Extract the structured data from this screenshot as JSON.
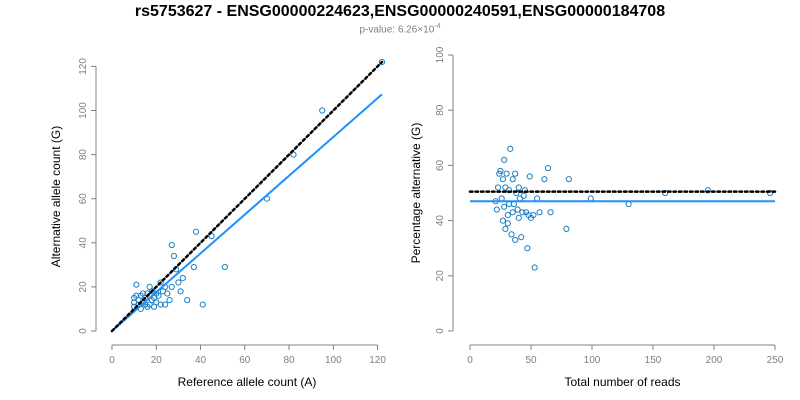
{
  "title": "rs5753627 - ENSG00000224623,ENSG00000240591,ENSG00000184708",
  "pvalue": {
    "prefix": "p-value: 6.26×10",
    "exponent": "-4"
  },
  "colors": {
    "points": "#1a80c4",
    "fit_line": "#1e90ff",
    "reference_line": "#000000",
    "axes": "#808080"
  },
  "chart_data": [
    {
      "type": "scatter",
      "xlabel": "Reference allele count (A)",
      "ylabel": "Alternative allele count (G)",
      "xlim": [
        0,
        122
      ],
      "ylim": [
        0,
        122
      ],
      "xticks": [
        0,
        20,
        40,
        60,
        80,
        100,
        120
      ],
      "yticks": [
        0,
        20,
        40,
        60,
        80,
        100,
        120
      ],
      "grid": false,
      "reference_line": {
        "style": "dotted",
        "slope": 1,
        "intercept": 0,
        "x": [
          0,
          122
        ]
      },
      "fit_line": {
        "style": "solid",
        "slope": 0.88,
        "intercept": 0,
        "x": [
          0,
          122
        ]
      },
      "points": [
        [
          10,
          11
        ],
        [
          10,
          13
        ],
        [
          10,
          15
        ],
        [
          11,
          16
        ],
        [
          11,
          21
        ],
        [
          12,
          12
        ],
        [
          12,
          14
        ],
        [
          13,
          10
        ],
        [
          13,
          16
        ],
        [
          14,
          13
        ],
        [
          14,
          17
        ],
        [
          15,
          12
        ],
        [
          15,
          15
        ],
        [
          16,
          11
        ],
        [
          16,
          17
        ],
        [
          17,
          12
        ],
        [
          17,
          20
        ],
        [
          18,
          14
        ],
        [
          18,
          18
        ],
        [
          19,
          11
        ],
        [
          19,
          15
        ],
        [
          20,
          13
        ],
        [
          20,
          17
        ],
        [
          21,
          16
        ],
        [
          22,
          12
        ],
        [
          22,
          22
        ],
        [
          23,
          18
        ],
        [
          24,
          12
        ],
        [
          24,
          20
        ],
        [
          25,
          17
        ],
        [
          26,
          14
        ],
        [
          27,
          20
        ],
        [
          27,
          39
        ],
        [
          28,
          34
        ],
        [
          29,
          28
        ],
        [
          30,
          22
        ],
        [
          31,
          18
        ],
        [
          32,
          24
        ],
        [
          34,
          14
        ],
        [
          37,
          29
        ],
        [
          38,
          45
        ],
        [
          41,
          12
        ],
        [
          45,
          43
        ],
        [
          51,
          29
        ],
        [
          70,
          60
        ],
        [
          82,
          80
        ],
        [
          95,
          100
        ],
        [
          122,
          122
        ]
      ]
    },
    {
      "type": "scatter",
      "xlabel": "Total number of reads",
      "ylabel": "Percentage alternative (G)",
      "xlim": [
        0,
        250
      ],
      "ylim": [
        0,
        100
      ],
      "xticks": [
        0,
        50,
        100,
        150,
        200,
        250
      ],
      "yticks": [
        0,
        20,
        40,
        60,
        80,
        100
      ],
      "grid": false,
      "reference_line": {
        "style": "dotted",
        "y": 50.5,
        "x": [
          0,
          250
        ]
      },
      "fit_line": {
        "style": "solid",
        "y": 47,
        "x": [
          0,
          250
        ]
      },
      "points": [
        [
          21,
          47
        ],
        [
          22,
          44
        ],
        [
          23,
          52
        ],
        [
          24,
          57
        ],
        [
          25,
          58
        ],
        [
          26,
          48
        ],
        [
          27,
          55
        ],
        [
          27,
          40
        ],
        [
          28,
          62
        ],
        [
          28,
          45
        ],
        [
          29,
          37
        ],
        [
          29,
          52
        ],
        [
          30,
          57
        ],
        [
          31,
          42
        ],
        [
          31,
          39
        ],
        [
          32,
          51
        ],
        [
          32,
          46
        ],
        [
          33,
          66
        ],
        [
          34,
          35
        ],
        [
          35,
          43
        ],
        [
          35,
          55
        ],
        [
          36,
          46
        ],
        [
          37,
          33
        ],
        [
          37,
          57
        ],
        [
          38,
          50
        ],
        [
          39,
          44
        ],
        [
          40,
          52
        ],
        [
          40,
          41
        ],
        [
          41,
          48
        ],
        [
          42,
          34
        ],
        [
          43,
          43
        ],
        [
          44,
          49
        ],
        [
          45,
          51
        ],
        [
          46,
          43
        ],
        [
          47,
          30
        ],
        [
          48,
          42
        ],
        [
          49,
          56
        ],
        [
          50,
          41
        ],
        [
          52,
          42
        ],
        [
          53,
          23
        ],
        [
          55,
          48
        ],
        [
          57,
          43
        ],
        [
          61,
          55
        ],
        [
          64,
          59
        ],
        [
          66,
          43
        ],
        [
          79,
          37
        ],
        [
          81,
          55
        ],
        [
          99,
          48
        ],
        [
          130,
          46
        ],
        [
          160,
          50
        ],
        [
          195,
          51
        ],
        [
          246,
          50
        ]
      ]
    }
  ]
}
